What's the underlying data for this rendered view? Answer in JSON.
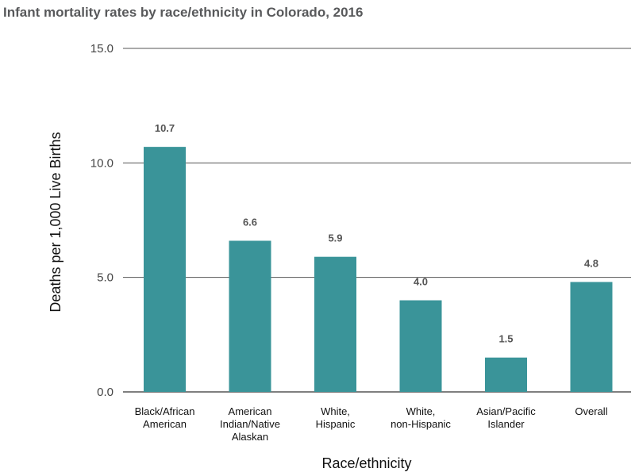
{
  "chart_data": {
    "type": "bar",
    "title": "Infant mortality rates by race/ethnicity in Colorado, 2016",
    "xlabel": "Race/ethnicity",
    "ylabel": "Deaths per 1,000 Live Births",
    "ylim": [
      0,
      15
    ],
    "yticks": [
      0,
      5,
      10,
      15
    ],
    "ytick_labels": [
      "0.0",
      "5.0",
      "10.0",
      "15.0"
    ],
    "grid": true,
    "categories": [
      [
        "Black/African",
        "American"
      ],
      [
        "American",
        "Indian/Native",
        "Alaskan"
      ],
      [
        "White,",
        "Hispanic"
      ],
      [
        "White,",
        "non-Hispanic"
      ],
      [
        "Asian/Pacific",
        "Islander"
      ],
      [
        "Overall"
      ]
    ],
    "values": [
      10.7,
      6.6,
      5.9,
      4.0,
      1.5,
      4.8
    ],
    "value_labels": [
      "10.7",
      "6.6",
      "5.9",
      "4.0",
      "1.5",
      "4.8"
    ],
    "bar_color": "#3a9499"
  }
}
